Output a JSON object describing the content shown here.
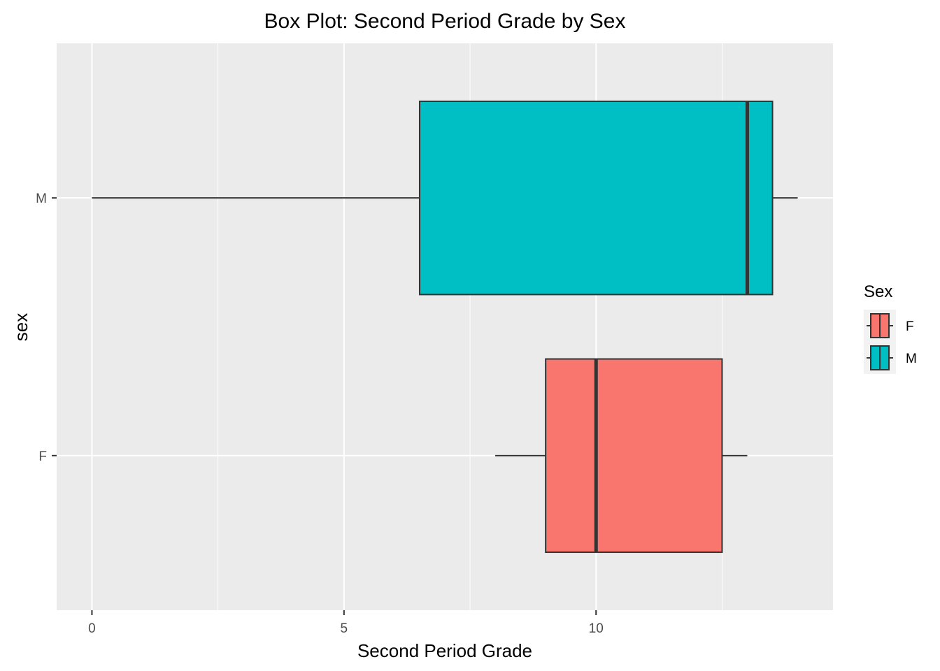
{
  "chart_data": {
    "type": "boxplot",
    "orientation": "horizontal",
    "title": "Box Plot: Second Period Grade by Sex",
    "xlabel": "Second Period Grade",
    "ylabel": "sex",
    "xlim": [
      -0.7,
      14.7
    ],
    "x_ticks": [
      0,
      5,
      10
    ],
    "x_tick_labels": [
      "0",
      "5",
      "10"
    ],
    "categories": [
      "F",
      "M"
    ],
    "grid": true,
    "boxes": [
      {
        "category": "F",
        "whisker_low": 8,
        "q1": 9,
        "median": 10,
        "q3": 12.5,
        "whisker_high": 13
      },
      {
        "category": "M",
        "whisker_low": 0,
        "q1": 6.5,
        "median": 13,
        "q3": 13.5,
        "whisker_high": 14
      }
    ],
    "legend": {
      "title": "Sex",
      "position": "right",
      "items": [
        {
          "label": "F",
          "color": "#F8766D"
        },
        {
          "label": "M",
          "color": "#00BFC4"
        }
      ]
    },
    "colors": {
      "panel_bg": "#EBEBEB",
      "grid_major": "#FFFFFF",
      "box_outline": "#333333",
      "tick_text": "#4D4D4D"
    }
  }
}
